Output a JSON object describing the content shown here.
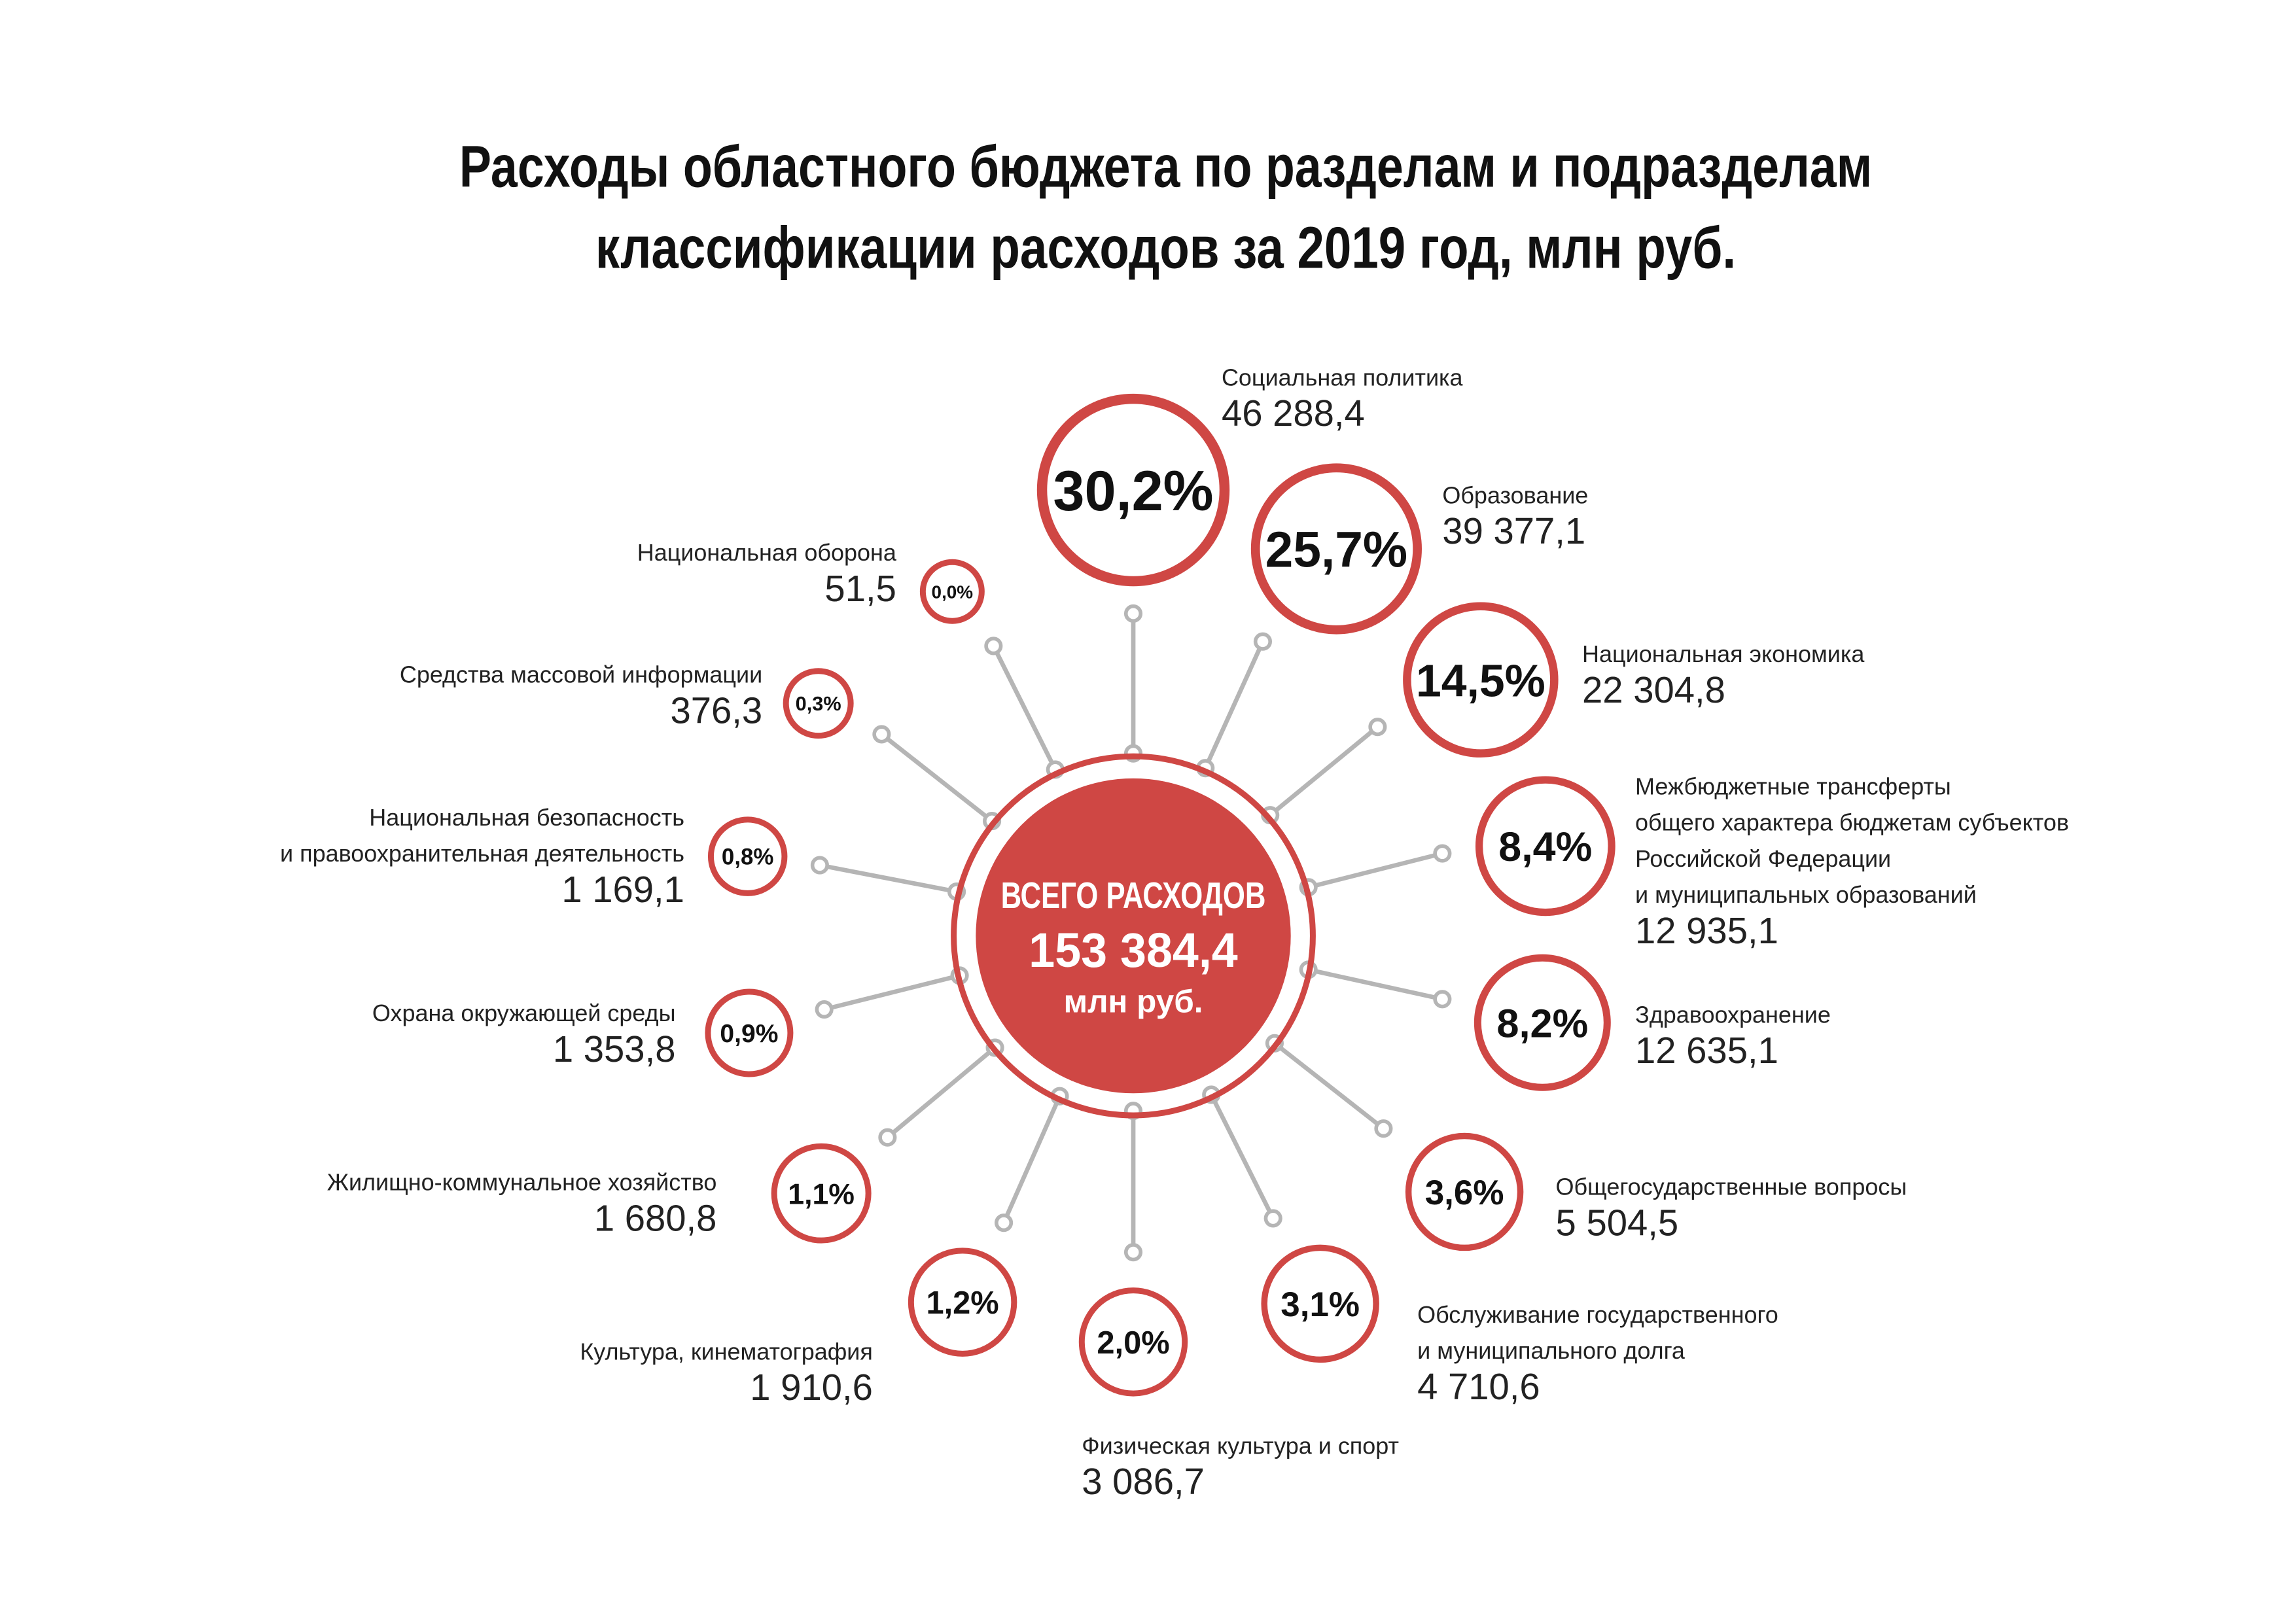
{
  "title": {
    "line1": "Расходы областного бюджета по разделам и подразделам",
    "line2": "классификации расходов за 2019 год, млн руб."
  },
  "center": {
    "label": "ВСЕГО РАСХОДОВ",
    "value": "153 384,4",
    "unit": "млн руб."
  },
  "colors": {
    "accent": "#cf4744",
    "spoke": "#b5b5b5",
    "text": "#222222"
  },
  "items": [
    {
      "name": [
        "Социальная политика"
      ],
      "value": "46 288,4",
      "percent": "30,2%"
    },
    {
      "name": [
        "Образование"
      ],
      "value": "39 377,1",
      "percent": "25,7%"
    },
    {
      "name": [
        "Национальная экономика"
      ],
      "value": "22 304,8",
      "percent": "14,5%"
    },
    {
      "name": [
        "Межбюджетные трансферты",
        "общего характера бюджетам субъектов",
        "Российской Федерации",
        "и муниципальных образований"
      ],
      "value": "12 935,1",
      "percent": "8,4%"
    },
    {
      "name": [
        "Здравоохранение"
      ],
      "value": "12 635,1",
      "percent": "8,2%"
    },
    {
      "name": [
        "Общегосударственные вопросы"
      ],
      "value": "5 504,5",
      "percent": "3,6%"
    },
    {
      "name": [
        "Обслуживание государственного",
        "и муниципального долга"
      ],
      "value": "4 710,6",
      "percent": "3,1%"
    },
    {
      "name": [
        "Физическая культура и спорт"
      ],
      "value": "3 086,7",
      "percent": "2,0%"
    },
    {
      "name": [
        "Культура, кинематография"
      ],
      "value": "1 910,6",
      "percent": "1,2%"
    },
    {
      "name": [
        "Жилищно-коммунальное хозяйство"
      ],
      "value": "1 680,8",
      "percent": "1,1%"
    },
    {
      "name": [
        "Охрана окружающей среды"
      ],
      "value": "1 353,8",
      "percent": "0,9%"
    },
    {
      "name": [
        "Национальная безопасность",
        "и правоохранительная деятельность"
      ],
      "value": "1 169,1",
      "percent": "0,8%"
    },
    {
      "name": [
        "Средства массовой информации"
      ],
      "value": "376,3",
      "percent": "0,3%"
    },
    {
      "name": [
        "Национальная оборона"
      ],
      "value": "51,5",
      "percent": "0,0%"
    }
  ]
}
